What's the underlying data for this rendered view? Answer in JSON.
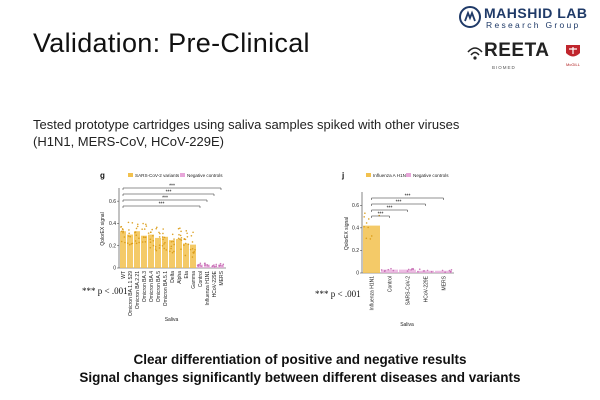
{
  "slide": {
    "title": "Validation: Pre-Clinical",
    "subtitle": "Tested prototype cartridges using saliva samples spiked with other viruses (H1N1, MERS-CoV, HCoV-229E)",
    "footer_line1": "Clear differentiation of positive and negative results",
    "footer_line2": "Signal changes significantly between different diseases and variants"
  },
  "logos": {
    "lab_name": "MAHSHID LAB",
    "lab_sub": "Research Group",
    "reeta": "REETA",
    "reeta_tag": "BIOMED",
    "univ": "McGILL"
  },
  "colors": {
    "positive": "#f2c14e",
    "negative": "#e7a6d9",
    "dots_pos": "#d99a14",
    "dots_neg": "#c56bb3"
  },
  "chart_data": [
    {
      "type": "bar",
      "panel": "g",
      "legend": [
        "SARS-CoV-2 variants",
        "Negative controls"
      ],
      "xlabel": "Saliva",
      "ylabel": "QolorEX signal",
      "ylim": [
        0,
        0.7
      ],
      "yticks": [
        "0.6",
        "0.4",
        "0.2",
        "0"
      ],
      "significance": "***",
      "p_note": "*** p < .001",
      "categories": [
        "WT",
        "Omicron BA.1.1.529",
        "Omicron BA.2.21",
        "Omicron BA.3",
        "Omicron BA.4",
        "Omicron BA.5",
        "Omicron BA.5.1",
        "Delta",
        "Alpha",
        "Eta",
        "Gamma",
        "Control",
        "Influenza H1N1",
        "HCoV-229E",
        "MERS"
      ],
      "group": [
        "pos",
        "pos",
        "pos",
        "pos",
        "pos",
        "pos",
        "pos",
        "pos",
        "pos",
        "pos",
        "pos",
        "neg",
        "neg",
        "neg",
        "neg"
      ],
      "values": [
        0.33,
        0.3,
        0.33,
        0.29,
        0.3,
        0.27,
        0.28,
        0.25,
        0.26,
        0.22,
        0.21,
        0.03,
        0.03,
        0.02,
        0.03
      ]
    },
    {
      "type": "bar",
      "panel": "j",
      "legend": [
        "Influenza A H1N1",
        "Negative controls"
      ],
      "xlabel": "Saliva",
      "ylabel": "QolorEX signal",
      "ylim": [
        0,
        0.7
      ],
      "yticks": [
        "0.6",
        "0.4",
        "0.2",
        "0"
      ],
      "significance": "***",
      "p_note": "*** p < .001",
      "categories": [
        "Influenza H1N1",
        "Control",
        "SARS-CoV-2",
        "HCoV-229E",
        "MERS"
      ],
      "group": [
        "pos",
        "neg",
        "neg",
        "neg",
        "neg"
      ],
      "values": [
        0.42,
        0.03,
        0.03,
        0.02,
        0.02
      ]
    }
  ]
}
